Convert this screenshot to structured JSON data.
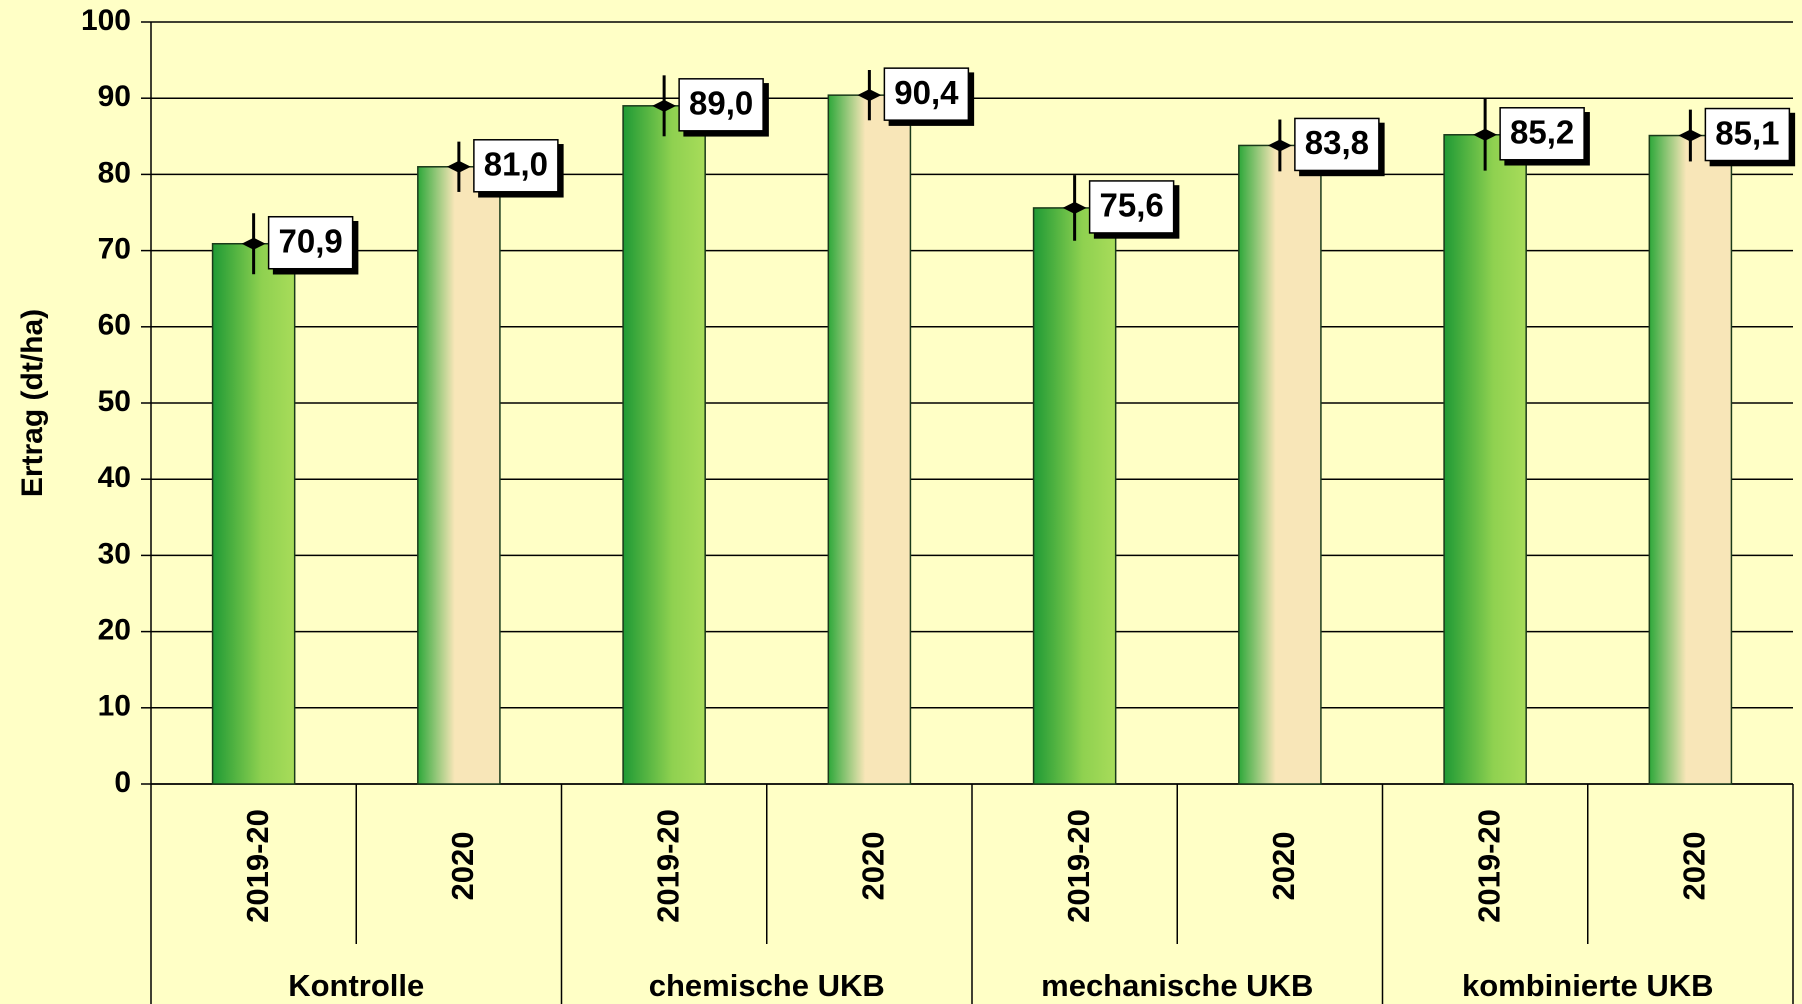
{
  "chart_data": {
    "type": "bar",
    "y_label": "Ertrag (dt/ha)",
    "categories": [
      "2019-20",
      "2020",
      "2019-20",
      "2020",
      "2019-20",
      "2020",
      "2019-20",
      "2020"
    ],
    "groups": [
      "Kontrolle",
      "chemische UKB",
      "mechanische UKB",
      "kombinierte UKB"
    ],
    "values": [
      70.9,
      81.0,
      89.0,
      90.4,
      75.6,
      83.8,
      85.2,
      85.1
    ],
    "value_labels": [
      "70,9",
      "81,0",
      "89,0",
      "90,4",
      "75,6",
      "83,8",
      "85,2",
      "85,1"
    ],
    "errors": [
      4,
      3.3,
      4,
      3.3,
      4.3,
      3.4,
      4.7,
      3.4
    ],
    "colors": [
      "#2ea83a",
      "#f5e3b0",
      "#2ea83a",
      "#f5e3b0",
      "#2ea83a",
      "#f5e3b0",
      "#2ea83a",
      "#f5e3b0"
    ],
    "ylim": [
      0,
      100
    ],
    "yticks": [
      0,
      10,
      20,
      30,
      40,
      50,
      60,
      70,
      80,
      90,
      100
    ],
    "grid": true
  }
}
